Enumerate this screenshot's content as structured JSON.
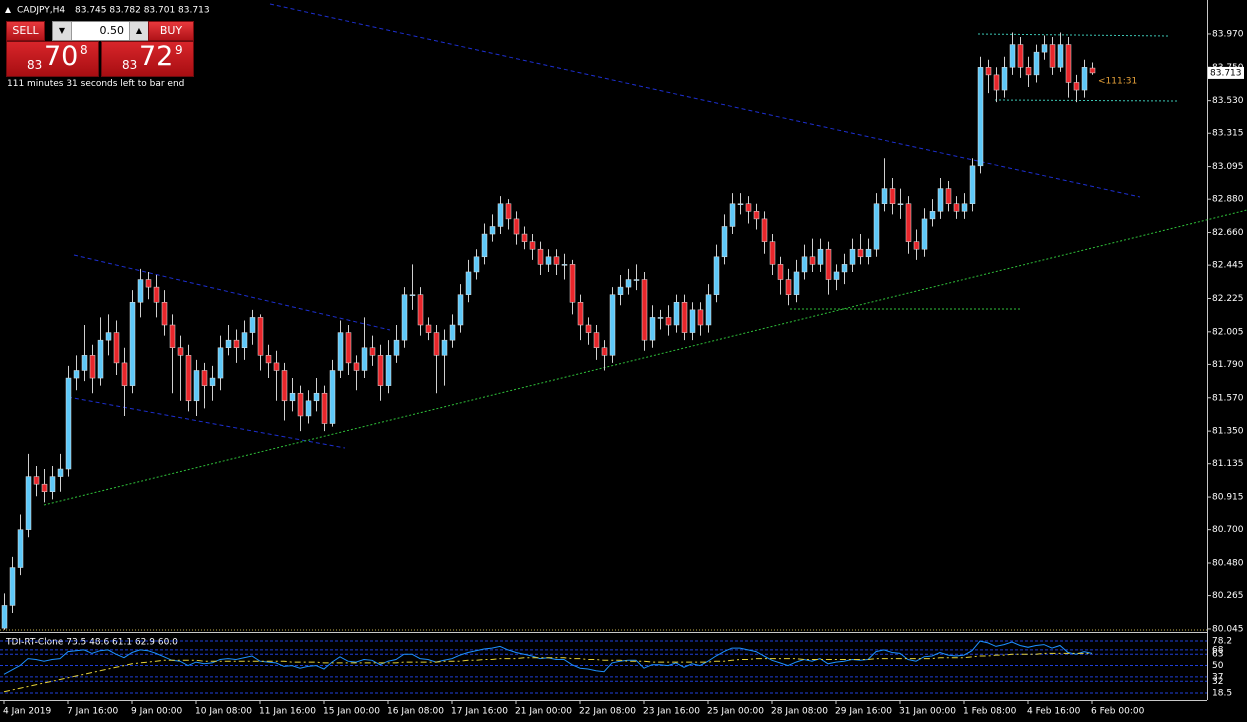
{
  "header": {
    "symbol": "CADJPY,H4",
    "quote": "83.745 83.782 83.701 83.713"
  },
  "trade_panel": {
    "sell": "SELL",
    "buy": "BUY",
    "lot": "0.50",
    "sell_price": {
      "small": "83",
      "big": "70",
      "pip": "8"
    },
    "buy_price": {
      "small": "83",
      "big": "72",
      "pip": "9"
    },
    "countdown": "111 minutes 31 seconds left to bar end"
  },
  "chart_data": [
    {
      "type": "candlestick",
      "up_color": "#5ec8f8",
      "down_color": "#e8262b",
      "current_price": 83.713,
      "timer": "<111:31",
      "ylim": [
        80.038,
        84.194
      ],
      "yticks": [
        {
          "value": 83.97,
          "label": "83.970"
        },
        {
          "value": 83.75,
          "label": "83.750"
        },
        {
          "value": 83.53,
          "label": "83.530"
        },
        83.315,
        83.095,
        {
          "value": 82.88,
          "label": "82.880"
        },
        {
          "value": 82.66,
          "label": "82.660"
        },
        82.445,
        82.225,
        82.005,
        {
          "value": 81.79,
          "label": "81.790"
        },
        {
          "value": 81.57,
          "label": "81.570"
        },
        {
          "value": 81.35,
          "label": "81.350"
        },
        81.135,
        80.915,
        {
          "value": 80.7,
          "label": "80.700"
        },
        {
          "value": 80.48,
          "label": "80.480"
        },
        80.265,
        80.045
      ],
      "xticks": [
        {
          "value": 0,
          "label": "4 Jan 2019"
        },
        {
          "value": 8,
          "label": "7 Jan 16:00"
        },
        {
          "value": 16,
          "label": "9 Jan 00:00"
        },
        {
          "value": 24,
          "label": "10 Jan 08:00"
        },
        {
          "value": 32,
          "label": "11 Jan 16:00"
        },
        {
          "value": 40,
          "label": "15 Jan 00:00"
        },
        {
          "value": 48,
          "label": "16 Jan 08:00"
        },
        {
          "value": 56,
          "label": "17 Jan 16:00"
        },
        {
          "value": 64,
          "label": "21 Jan 00:00"
        },
        {
          "value": 72,
          "label": "22 Jan 08:00"
        },
        {
          "value": 80,
          "label": "23 Jan 16:00"
        },
        {
          "value": 88,
          "label": "25 Jan 00:00"
        },
        {
          "value": 96,
          "label": "28 Jan 08:00"
        },
        {
          "value": 104,
          "label": "29 Jan 16:00"
        },
        {
          "value": 112,
          "label": "31 Jan 00:00"
        },
        {
          "value": 120,
          "label": "1 Feb 08:00"
        },
        {
          "value": 128,
          "label": "4 Feb 16:00"
        },
        {
          "value": 136,
          "label": "6 Feb 00:00"
        }
      ],
      "ohlc": [
        [
          80.05,
          80.28,
          80.04,
          80.2
        ],
        [
          80.2,
          80.52,
          80.15,
          80.45
        ],
        [
          80.45,
          80.8,
          80.4,
          80.7
        ],
        [
          80.7,
          81.2,
          80.65,
          81.05
        ],
        [
          81.05,
          81.12,
          80.92,
          81.0
        ],
        [
          81.0,
          81.1,
          80.88,
          80.95
        ],
        [
          80.95,
          81.12,
          80.9,
          81.05
        ],
        [
          81.05,
          81.2,
          80.95,
          81.1
        ],
        [
          81.1,
          81.78,
          81.05,
          81.7
        ],
        [
          81.7,
          81.85,
          81.62,
          81.75
        ],
        [
          81.75,
          82.05,
          81.68,
          81.85
        ],
        [
          81.85,
          81.92,
          81.6,
          81.7
        ],
        [
          81.7,
          82.1,
          81.65,
          81.95
        ],
        [
          81.95,
          82.12,
          81.85,
          82.0
        ],
        [
          82.0,
          82.08,
          81.72,
          81.8
        ],
        [
          81.8,
          81.9,
          81.45,
          81.65
        ],
        [
          81.65,
          82.28,
          81.6,
          82.2
        ],
        [
          82.2,
          82.42,
          82.1,
          82.35
        ],
        [
          82.35,
          82.4,
          82.22,
          82.3
        ],
        [
          82.3,
          82.38,
          82.1,
          82.2
        ],
        [
          82.2,
          82.28,
          81.98,
          82.05
        ],
        [
          82.05,
          82.12,
          81.6,
          81.9
        ],
        [
          81.9,
          81.98,
          81.55,
          81.85
        ],
        [
          81.85,
          81.92,
          81.48,
          81.55
        ],
        [
          81.55,
          81.82,
          81.45,
          81.75
        ],
        [
          81.75,
          81.8,
          81.5,
          81.65
        ],
        [
          81.65,
          81.78,
          81.55,
          81.7
        ],
        [
          81.7,
          81.98,
          81.62,
          81.9
        ],
        [
          81.9,
          82.05,
          81.85,
          81.95
        ],
        [
          81.95,
          82.02,
          81.8,
          81.9
        ],
        [
          81.9,
          82.08,
          81.82,
          82.0
        ],
        [
          82.0,
          82.15,
          81.92,
          82.1
        ],
        [
          82.1,
          82.12,
          81.75,
          81.85
        ],
        [
          81.85,
          81.92,
          81.7,
          81.8
        ],
        [
          81.8,
          81.88,
          81.55,
          81.75
        ],
        [
          81.75,
          81.8,
          81.42,
          81.55
        ],
        [
          81.55,
          81.7,
          81.48,
          81.6
        ],
        [
          81.6,
          81.65,
          81.35,
          81.45
        ],
        [
          81.45,
          81.62,
          81.4,
          81.55
        ],
        [
          81.55,
          81.7,
          81.48,
          81.6
        ],
        [
          81.6,
          81.65,
          81.35,
          81.4
        ],
        [
          81.4,
          81.82,
          81.38,
          81.75
        ],
        [
          81.75,
          82.08,
          81.7,
          82.0
        ],
        [
          82.0,
          82.05,
          81.72,
          81.8
        ],
        [
          81.8,
          81.85,
          81.62,
          81.75
        ],
        [
          81.75,
          82.1,
          81.7,
          81.9
        ],
        [
          81.9,
          81.98,
          81.78,
          81.85
        ],
        [
          81.85,
          81.92,
          81.55,
          81.65
        ],
        [
          81.65,
          81.95,
          81.6,
          81.85
        ],
        [
          81.85,
          82.05,
          81.8,
          81.95
        ],
        [
          81.95,
          82.3,
          81.9,
          82.25
        ],
        [
          82.25,
          82.45,
          82.15,
          82.25
        ],
        [
          82.25,
          82.3,
          81.98,
          82.05
        ],
        [
          82.05,
          82.1,
          81.95,
          82.0
        ],
        [
          82.0,
          82.05,
          81.6,
          81.85
        ],
        [
          81.85,
          82.02,
          81.65,
          81.95
        ],
        [
          81.95,
          82.12,
          81.9,
          82.05
        ],
        [
          82.05,
          82.32,
          82.0,
          82.25
        ],
        [
          82.25,
          82.48,
          82.2,
          82.4
        ],
        [
          82.4,
          82.55,
          82.35,
          82.5
        ],
        [
          82.5,
          82.72,
          82.45,
          82.65
        ],
        [
          82.65,
          82.78,
          82.6,
          82.7
        ],
        [
          82.7,
          82.9,
          82.65,
          82.85
        ],
        [
          82.85,
          82.88,
          82.68,
          82.75
        ],
        [
          82.75,
          82.8,
          82.58,
          82.65
        ],
        [
          82.65,
          82.7,
          82.55,
          82.6
        ],
        [
          82.6,
          82.65,
          82.48,
          82.55
        ],
        [
          82.55,
          82.6,
          82.38,
          82.45
        ],
        [
          82.45,
          82.55,
          82.4,
          82.5
        ],
        [
          82.5,
          82.55,
          82.38,
          82.45
        ],
        [
          82.45,
          82.52,
          82.35,
          82.45
        ],
        [
          82.45,
          82.48,
          82.12,
          82.2
        ],
        [
          82.2,
          82.25,
          81.95,
          82.05
        ],
        [
          82.05,
          82.1,
          81.92,
          82.0
        ],
        [
          82.0,
          82.05,
          81.82,
          81.9
        ],
        [
          81.9,
          81.95,
          81.75,
          81.85
        ],
        [
          81.85,
          82.3,
          81.8,
          82.25
        ],
        [
          82.25,
          82.38,
          82.18,
          82.3
        ],
        [
          82.3,
          82.42,
          82.25,
          82.35
        ],
        [
          82.35,
          82.45,
          82.28,
          82.35
        ],
        [
          82.35,
          82.4,
          81.88,
          81.95
        ],
        [
          81.95,
          82.18,
          81.9,
          82.1
        ],
        [
          82.1,
          82.15,
          82.02,
          82.1
        ],
        [
          82.1,
          82.18,
          81.98,
          82.05
        ],
        [
          82.05,
          82.25,
          82.0,
          82.2
        ],
        [
          82.2,
          82.25,
          81.95,
          82.0
        ],
        [
          82.0,
          82.2,
          81.95,
          82.15
        ],
        [
          82.15,
          82.2,
          81.98,
          82.05
        ],
        [
          82.05,
          82.32,
          82.0,
          82.25
        ],
        [
          82.25,
          82.58,
          82.2,
          82.5
        ],
        [
          82.5,
          82.78,
          82.45,
          82.7
        ],
        [
          82.7,
          82.92,
          82.65,
          82.85
        ],
        [
          82.85,
          82.92,
          82.78,
          82.85
        ],
        [
          82.85,
          82.9,
          82.72,
          82.8
        ],
        [
          82.8,
          82.85,
          82.68,
          82.75
        ],
        [
          82.75,
          82.8,
          82.52,
          82.6
        ],
        [
          82.6,
          82.65,
          82.38,
          82.45
        ],
        [
          82.45,
          82.5,
          82.25,
          82.35
        ],
        [
          82.35,
          82.42,
          82.18,
          82.25
        ],
        [
          82.25,
          82.48,
          82.2,
          82.4
        ],
        [
          82.4,
          82.58,
          82.35,
          82.5
        ],
        [
          82.5,
          82.62,
          82.4,
          82.45
        ],
        [
          82.45,
          82.62,
          82.4,
          82.55
        ],
        [
          82.55,
          82.6,
          82.25,
          82.35
        ],
        [
          82.35,
          82.45,
          82.28,
          82.4
        ],
        [
          82.4,
          82.52,
          82.32,
          82.45
        ],
        [
          82.45,
          82.62,
          82.4,
          82.55
        ],
        [
          82.55,
          82.65,
          82.45,
          82.5
        ],
        [
          82.5,
          82.62,
          82.45,
          82.55
        ],
        [
          82.55,
          82.92,
          82.5,
          82.85
        ],
        [
          82.85,
          83.15,
          82.8,
          82.95
        ],
        [
          82.95,
          83.02,
          82.78,
          82.85
        ],
        [
          82.85,
          82.95,
          82.75,
          82.85
        ],
        [
          82.85,
          82.9,
          82.52,
          82.6
        ],
        [
          82.6,
          82.68,
          82.48,
          82.55
        ],
        [
          82.55,
          82.82,
          82.5,
          82.75
        ],
        [
          82.75,
          82.88,
          82.7,
          82.8
        ],
        [
          82.8,
          83.02,
          82.75,
          82.95
        ],
        [
          82.95,
          83.0,
          82.8,
          82.85
        ],
        [
          82.85,
          82.9,
          82.75,
          82.8
        ],
        [
          82.8,
          82.92,
          82.75,
          82.85
        ],
        [
          82.85,
          83.15,
          82.8,
          83.1
        ],
        [
          83.1,
          83.82,
          83.05,
          83.75
        ],
        [
          83.75,
          83.8,
          83.58,
          83.7
        ],
        [
          83.7,
          83.75,
          83.52,
          83.6
        ],
        [
          83.6,
          83.82,
          83.55,
          83.75
        ],
        [
          83.75,
          83.98,
          83.7,
          83.9
        ],
        [
          83.9,
          83.95,
          83.68,
          83.75
        ],
        [
          83.75,
          83.82,
          83.62,
          83.7
        ],
        [
          83.7,
          83.9,
          83.65,
          83.85
        ],
        [
          83.85,
          83.96,
          83.8,
          83.9
        ],
        [
          83.9,
          83.95,
          83.7,
          83.75
        ],
        [
          83.75,
          83.98,
          83.72,
          83.9
        ],
        [
          83.9,
          83.95,
          83.55,
          83.65
        ],
        [
          83.65,
          83.7,
          83.52,
          83.6
        ],
        [
          83.6,
          83.8,
          83.55,
          83.75
        ],
        [
          83.745,
          83.782,
          83.701,
          83.713
        ]
      ]
    },
    {
      "type": "line",
      "title": "TDI-RT-Clone 73.5 48.6 61.1 62.9 60.0",
      "ylim": [
        10.5,
        86.2
      ],
      "yticks": [
        78.2,
        68,
        63,
        50,
        37,
        32,
        18.5
      ],
      "grid_color": "#1f3fd8",
      "series": [
        {
          "color": "#1e90ff",
          "values": [
            40,
            45,
            50,
            58,
            57,
            55,
            57,
            58,
            66,
            67,
            68,
            64,
            67,
            68,
            63,
            59,
            65,
            68,
            67,
            64,
            60,
            56,
            55,
            50,
            54,
            52,
            53,
            57,
            58,
            57,
            59,
            61,
            55,
            54,
            53,
            49,
            50,
            47,
            49,
            50,
            46,
            54,
            60,
            55,
            54,
            57,
            56,
            51,
            55,
            57,
            63,
            63,
            58,
            57,
            54,
            56,
            58,
            62,
            65,
            67,
            69,
            70,
            72,
            68,
            65,
            63,
            61,
            58,
            59,
            57,
            57,
            51,
            47,
            46,
            44,
            43,
            53,
            55,
            56,
            56,
            47,
            51,
            51,
            50,
            53,
            48,
            52,
            50,
            55,
            61,
            66,
            70,
            70,
            68,
            66,
            61,
            56,
            53,
            50,
            54,
            57,
            55,
            58,
            52,
            54,
            55,
            57,
            56,
            57,
            66,
            68,
            65,
            64,
            57,
            55,
            60,
            61,
            65,
            62,
            61,
            62,
            67,
            78,
            76,
            72,
            74,
            77,
            73,
            71,
            73,
            74,
            70,
            73,
            65,
            63,
            66,
            64
          ]
        },
        {
          "color": "#e6d23a",
          "values": [
            20,
            22,
            24,
            26,
            28,
            30,
            32,
            34,
            36,
            38,
            40,
            42,
            44,
            46,
            48,
            50,
            52,
            53,
            54,
            55,
            56,
            56,
            56,
            56,
            56,
            55,
            55,
            55,
            55,
            55,
            55,
            55,
            55,
            55,
            55,
            55,
            54,
            54,
            54,
            54,
            53,
            53,
            53,
            53,
            53,
            53,
            53,
            53,
            53,
            53,
            54,
            54,
            54,
            54,
            54,
            55,
            55,
            55,
            56,
            56,
            57,
            57,
            58,
            58,
            58,
            59,
            59,
            59,
            59,
            59,
            59,
            58,
            58,
            57,
            57,
            56,
            56,
            56,
            55,
            55,
            55,
            54,
            54,
            54,
            54,
            54,
            54,
            54,
            54,
            55,
            55,
            56,
            57,
            57,
            58,
            58,
            58,
            58,
            58,
            58,
            57,
            57,
            57,
            57,
            57,
            57,
            57,
            57,
            57,
            58,
            58,
            58,
            58,
            58,
            58,
            58,
            58,
            59,
            59,
            59,
            59,
            60,
            61,
            61,
            62,
            62,
            63,
            63,
            63,
            63,
            64,
            64,
            64,
            64,
            64,
            64,
            64
          ]
        }
      ]
    }
  ]
}
